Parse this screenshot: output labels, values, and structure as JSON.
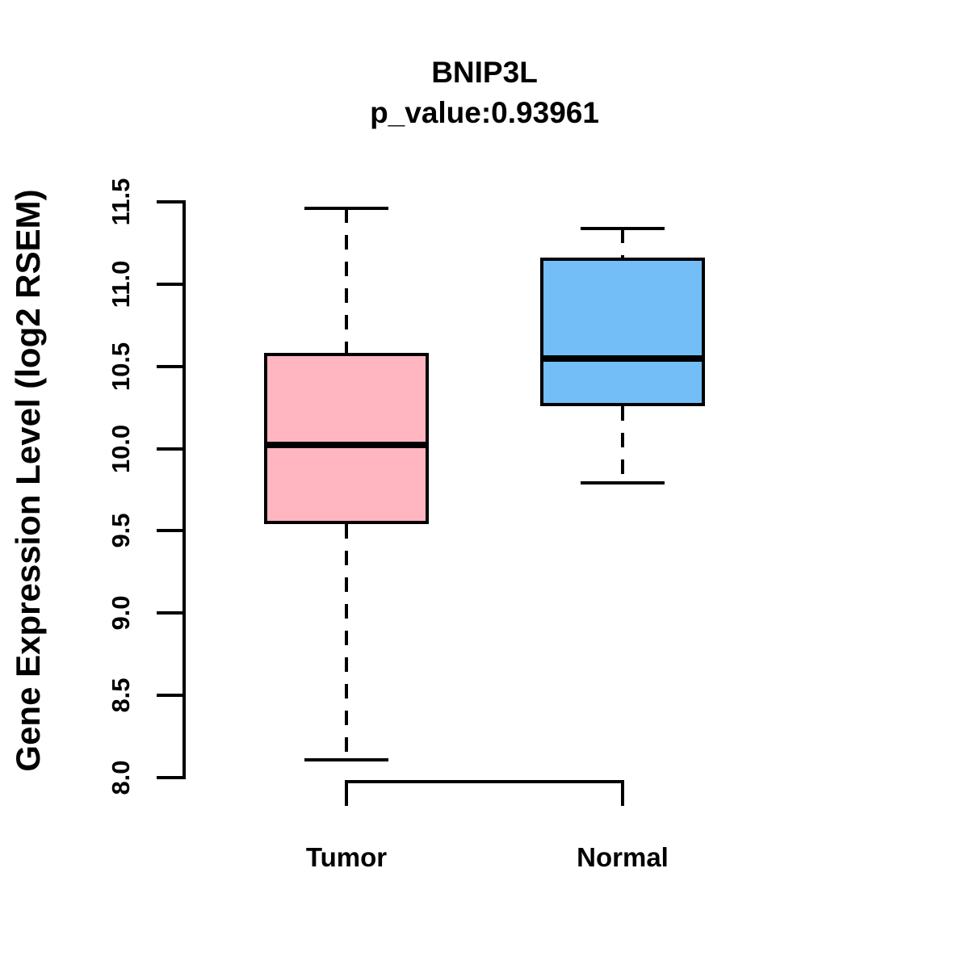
{
  "header": {
    "title": "BNIP3L",
    "subtitle": "p_value:0.93961"
  },
  "axes": {
    "y_label": "Gene Expression Level (log2 RSEM)",
    "y_tick_labels": [
      "8.0",
      "8.5",
      "9.0",
      "9.5",
      "10.0",
      "10.5",
      "11.0",
      "11.5"
    ],
    "x_category_labels": [
      "Tumor",
      "Normal"
    ]
  },
  "colors": {
    "tumor_fill": "#FFB6C1",
    "normal_fill": "#73BEF7",
    "line": "#000000",
    "background": "#FFFFFF"
  },
  "chart_data": {
    "type": "boxplot",
    "title": "BNIP3L",
    "subtitle": "p_value:0.93961",
    "ylabel": "Gene Expression Level (log2 RSEM)",
    "xlabel": "",
    "ylim": [
      8.0,
      11.5
    ],
    "y_ticks": [
      8.0,
      8.5,
      9.0,
      9.5,
      10.0,
      10.5,
      11.0,
      11.5
    ],
    "grid": false,
    "legend": "none",
    "categories": [
      "Tumor",
      "Normal"
    ],
    "series": [
      {
        "name": "Tumor",
        "whisker_low": 8.11,
        "q1": 9.54,
        "median": 10.02,
        "q3": 10.58,
        "whisker_high": 11.46,
        "outliers": [],
        "fill": "#FFB6C1"
      },
      {
        "name": "Normal",
        "whisker_low": 9.79,
        "q1": 10.26,
        "median": 10.55,
        "q3": 11.16,
        "whisker_high": 11.34,
        "outliers": [],
        "fill": "#73BEF7"
      }
    ]
  }
}
